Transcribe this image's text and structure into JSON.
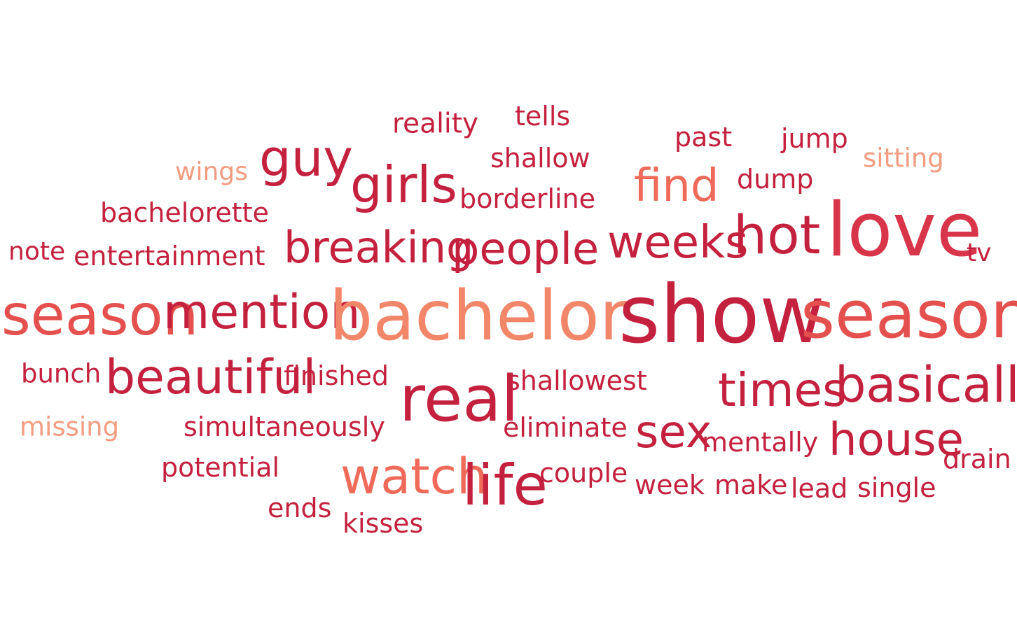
{
  "colors": {
    "c1": "#c4213f",
    "c2": "#d8354a",
    "c3": "#e4504e",
    "c4": "#ef6a58",
    "c5": "#f28669",
    "c6": "#f49c80"
  },
  "words": [
    {
      "text": "reality",
      "weight": 0.33,
      "color": "c1"
    },
    {
      "text": "tells",
      "weight": 0.32,
      "color": "c1"
    },
    {
      "text": "past",
      "weight": 0.32,
      "color": "c1"
    },
    {
      "text": "jump",
      "weight": 0.32,
      "color": "c1"
    },
    {
      "text": "guy",
      "weight": 0.62,
      "color": "c1"
    },
    {
      "text": "wings",
      "weight": 0.31,
      "color": "c6"
    },
    {
      "text": "shallow",
      "weight": 0.32,
      "color": "c1"
    },
    {
      "text": "sitting",
      "weight": 0.31,
      "color": "c6"
    },
    {
      "text": "girls",
      "weight": 0.62,
      "color": "c1"
    },
    {
      "text": "find",
      "weight": 0.58,
      "color": "c4"
    },
    {
      "text": "dump",
      "weight": 0.32,
      "color": "c1"
    },
    {
      "text": "borderline",
      "weight": 0.32,
      "color": "c1"
    },
    {
      "text": "bachelorette",
      "weight": 0.32,
      "color": "c1"
    },
    {
      "text": "love",
      "weight": 0.92,
      "color": "c2"
    },
    {
      "text": "hot",
      "weight": 0.65,
      "color": "c1"
    },
    {
      "text": "weeks",
      "weight": 0.55,
      "color": "c1"
    },
    {
      "text": "breaking",
      "weight": 0.54,
      "color": "c1"
    },
    {
      "text": "people",
      "weight": 0.54,
      "color": "c1"
    },
    {
      "text": "note",
      "weight": 0.31,
      "color": "c1"
    },
    {
      "text": "entertainment",
      "weight": 0.32,
      "color": "c1"
    },
    {
      "text": "tv",
      "weight": 0.31,
      "color": "c1"
    },
    {
      "text": "season",
      "weight": 0.7,
      "color": "c3"
    },
    {
      "text": "mention",
      "weight": 0.59,
      "color": "c1"
    },
    {
      "text": "bachelor",
      "weight": 0.85,
      "color": "c5"
    },
    {
      "text": "show",
      "weight": 1.0,
      "color": "c1"
    },
    {
      "text": "seasons",
      "weight": 0.82,
      "color": "c3"
    },
    {
      "text": "bunch",
      "weight": 0.32,
      "color": "c1"
    },
    {
      "text": "beautiful",
      "weight": 0.59,
      "color": "c1"
    },
    {
      "text": "finished",
      "weight": 0.32,
      "color": "c1"
    },
    {
      "text": "real",
      "weight": 0.78,
      "color": "c1"
    },
    {
      "text": "shallowest",
      "weight": 0.32,
      "color": "c1"
    },
    {
      "text": "times",
      "weight": 0.57,
      "color": "c1"
    },
    {
      "text": "basically",
      "weight": 0.6,
      "color": "c1"
    },
    {
      "text": "missing",
      "weight": 0.32,
      "color": "c6"
    },
    {
      "text": "simultaneously",
      "weight": 0.32,
      "color": "c1"
    },
    {
      "text": "eliminate",
      "weight": 0.32,
      "color": "c1"
    },
    {
      "text": "sex",
      "weight": 0.55,
      "color": "c1"
    },
    {
      "text": "mentally",
      "weight": 0.32,
      "color": "c1"
    },
    {
      "text": "house",
      "weight": 0.55,
      "color": "c1"
    },
    {
      "text": "drain",
      "weight": 0.32,
      "color": "c1"
    },
    {
      "text": "potential",
      "weight": 0.32,
      "color": "c1"
    },
    {
      "text": "watch",
      "weight": 0.6,
      "color": "c4"
    },
    {
      "text": "life",
      "weight": 0.7,
      "color": "c1"
    },
    {
      "text": "couple",
      "weight": 0.32,
      "color": "c1"
    },
    {
      "text": "week",
      "weight": 0.32,
      "color": "c1"
    },
    {
      "text": "make",
      "weight": 0.32,
      "color": "c1"
    },
    {
      "text": "lead",
      "weight": 0.32,
      "color": "c1"
    },
    {
      "text": "single",
      "weight": 0.32,
      "color": "c1"
    },
    {
      "text": "ends",
      "weight": 0.32,
      "color": "c1"
    },
    {
      "text": "kisses",
      "weight": 0.32,
      "color": "c1"
    }
  ]
}
